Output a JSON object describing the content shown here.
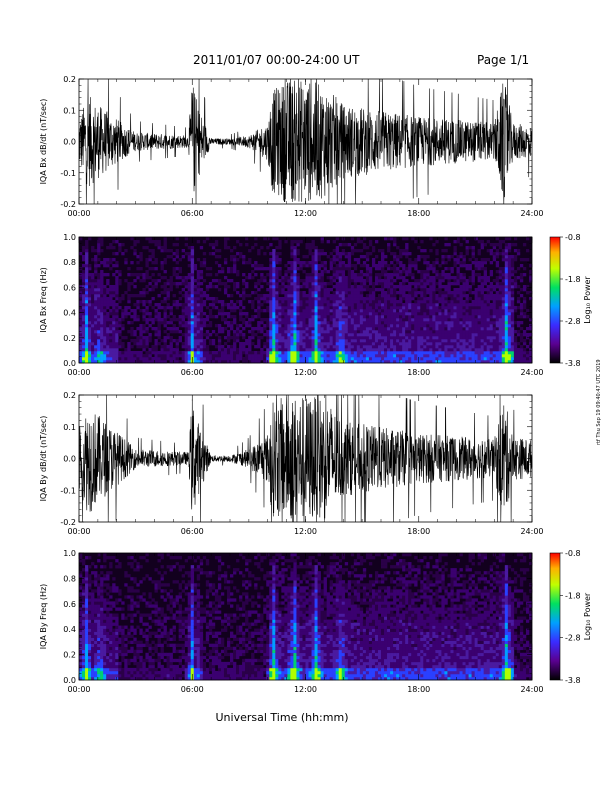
{
  "header": {
    "title": "2011/01/07  00:00-24:00 UT",
    "page": "Page 1/1"
  },
  "footer": {
    "xlabel": "Universal Time (hh:mm)",
    "stamp": "rtf Thu Sep 19 09:40:47 UTC 2019"
  },
  "chart_data": [
    {
      "type": "line",
      "panel": "IQA Bx dB/dt",
      "ylabel": "IQA Bx dB/dt (nT/sec)",
      "xlabel": "",
      "x_ticks": [
        "00:00",
        "06:00",
        "12:00",
        "18:00",
        "24:00"
      ],
      "xlim_hours": [
        0,
        24
      ],
      "ylim": [
        -0.2,
        0.2
      ],
      "y_ticks": [
        "-0.2",
        "-0.1",
        "0.0",
        "0.1",
        "0.2"
      ],
      "color": "#000000",
      "amplitude_envelope": {
        "hour": [
          0,
          0.5,
          1,
          2.5,
          3,
          5.8,
          6.0,
          6.3,
          7,
          8,
          9,
          10,
          10.2,
          11,
          12,
          13,
          14,
          16,
          18,
          20,
          22,
          22.5,
          23,
          24
        ],
        "amp": [
          0.08,
          0.15,
          0.12,
          0.05,
          0.03,
          0.02,
          0.2,
          0.12,
          0.01,
          0.01,
          0.02,
          0.06,
          0.16,
          0.2,
          0.2,
          0.18,
          0.12,
          0.1,
          0.08,
          0.07,
          0.06,
          0.2,
          0.06,
          0.05
        ]
      }
    },
    {
      "type": "heatmap",
      "panel": "IQA Bx Freq",
      "ylabel": "IQA Bx Freq (Hz)",
      "x_ticks": [
        "00:00",
        "06:00",
        "12:00",
        "18:00",
        "24:00"
      ],
      "xlim_hours": [
        0,
        24
      ],
      "ylim": [
        0.0,
        1.0
      ],
      "y_ticks": [
        "0.0",
        "0.2",
        "0.4",
        "0.6",
        "0.8",
        "1.0"
      ],
      "colorbar": {
        "label": "Log₁₀ Power",
        "ticks": [
          "-0.8",
          "-1.8",
          "-2.8",
          "-3.8"
        ],
        "range": [
          -3.8,
          -0.8
        ]
      }
    },
    {
      "type": "line",
      "panel": "IQA By dB/dt",
      "ylabel": "IQA By dB/dt (nT/sec)",
      "x_ticks": [
        "00:00",
        "06:00",
        "12:00",
        "18:00",
        "24:00"
      ],
      "xlim_hours": [
        0,
        24
      ],
      "ylim": [
        -0.2,
        0.2
      ],
      "y_ticks": [
        "-0.2",
        "-0.1",
        "0.0",
        "0.1",
        "0.2"
      ],
      "color": "#000000",
      "amplitude_envelope": {
        "hour": [
          0,
          0.5,
          1,
          2.5,
          3,
          5.8,
          6.0,
          6.3,
          7,
          8,
          9,
          10,
          10.2,
          11,
          12,
          13,
          14,
          16,
          18,
          20,
          22,
          22.5,
          23,
          24
        ],
        "amp": [
          0.1,
          0.18,
          0.14,
          0.06,
          0.03,
          0.02,
          0.2,
          0.12,
          0.01,
          0.01,
          0.03,
          0.08,
          0.18,
          0.2,
          0.2,
          0.2,
          0.12,
          0.1,
          0.08,
          0.07,
          0.06,
          0.2,
          0.07,
          0.06
        ]
      }
    },
    {
      "type": "heatmap",
      "panel": "IQA By Freq",
      "ylabel": "IQA By Freq (Hz)",
      "x_ticks": [
        "00:00",
        "06:00",
        "12:00",
        "18:00",
        "24:00"
      ],
      "xlim_hours": [
        0,
        24
      ],
      "ylim": [
        0.0,
        1.0
      ],
      "y_ticks": [
        "0.0",
        "0.2",
        "0.4",
        "0.6",
        "0.8",
        "1.0"
      ],
      "colorbar": {
        "label": "Log₁₀ Power",
        "ticks": [
          "-0.8",
          "-1.8",
          "-2.8",
          "-3.8"
        ],
        "range": [
          -3.8,
          -0.8
        ]
      }
    }
  ]
}
